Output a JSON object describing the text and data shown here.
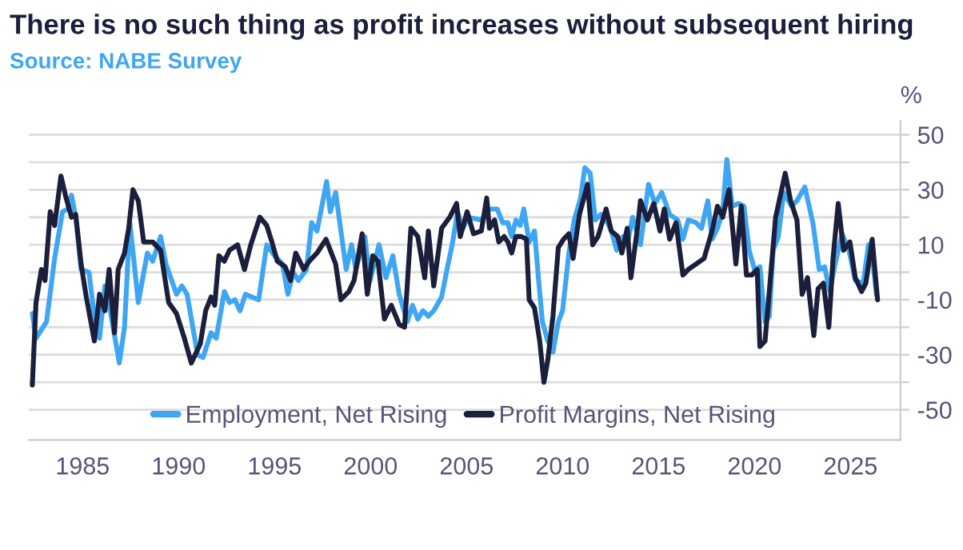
{
  "chart_data": {
    "type": "line",
    "title": "There is no such thing as profit increases without subsequent hiring",
    "subtitle": "Source: NABE Survey",
    "ylabel": "%",
    "series": [
      {
        "name": "Employment, Net Rising",
        "color": "#3ea6f2",
        "x": [
          1982.38,
          1982.57,
          1983.12,
          1983.54,
          1983.95,
          1984.23,
          1984.42,
          1984.64,
          1984.92,
          1985.33,
          1985.61,
          1985.88,
          1986.16,
          1986.44,
          1986.91,
          1987.18,
          1987.46,
          1987.9,
          1988.37,
          1988.65,
          1989.06,
          1989.34,
          1989.89,
          1990.17,
          1990.44,
          1990.99,
          1991.27,
          1991.69,
          1991.96,
          1992.38,
          1992.65,
          1992.93,
          1993.2,
          1993.48,
          1994.17,
          1994.59,
          1995.0,
          1995.41,
          1995.69,
          1995.97,
          1996.24,
          1996.66,
          1996.93,
          1997.21,
          1997.71,
          1997.9,
          1998.18,
          1998.73,
          1999.01,
          1999.23,
          1999.7,
          1999.97,
          2000.44,
          2000.8,
          2001.16,
          2001.49,
          2001.91,
          2002.18,
          2002.46,
          2002.73,
          2003.01,
          2003.29,
          2003.7,
          2003.98,
          2004.25,
          2004.53,
          2004.81,
          2005.08,
          2005.77,
          2006.19,
          2006.6,
          2006.88,
          2007.15,
          2007.35,
          2007.57,
          2007.79,
          2007.98,
          2008.26,
          2008.54,
          2008.73,
          2008.95,
          2009.23,
          2009.5,
          2009.78,
          2010.0,
          2010.33,
          2010.61,
          2010.94,
          2011.16,
          2011.44,
          2011.71,
          2011.99,
          2012.27,
          2012.54,
          2012.82,
          2013.15,
          2013.37,
          2013.65,
          2014.06,
          2014.48,
          2014.81,
          2015.17,
          2015.58,
          2016.0,
          2016.27,
          2016.55,
          2016.96,
          2017.24,
          2017.57,
          2017.79,
          2018.07,
          2018.34,
          2018.56,
          2018.84,
          2019.17,
          2019.45,
          2019.72,
          2020.0,
          2020.28,
          2020.55,
          2020.77,
          2020.97,
          2021.24,
          2021.52,
          2021.93,
          2022.21,
          2022.62,
          2023.04,
          2023.37,
          2023.65,
          2023.92,
          2024.2,
          2024.56,
          2024.92,
          2025.25,
          2025.66,
          2025.94,
          2026.08,
          2026.35
        ],
        "values": [
          -15,
          -24,
          -18,
          5,
          22,
          23,
          28,
          20,
          1,
          0,
          -16,
          -24,
          -5,
          -14,
          -33,
          -20,
          18,
          -11,
          7,
          4,
          13,
          3,
          -8,
          -5,
          -8,
          -30,
          -31,
          -22,
          -24,
          -7,
          -11,
          -10,
          -14,
          -8,
          -10,
          10,
          6,
          3,
          -8,
          0,
          -3,
          1,
          18,
          15,
          33,
          22,
          29,
          1,
          10,
          1,
          13,
          -3,
          10,
          -2,
          6,
          -8,
          -18,
          -12,
          -17,
          -14,
          -16,
          -14,
          -9,
          1,
          10,
          22,
          16,
          20,
          19,
          23,
          23,
          18,
          18,
          13,
          19,
          17,
          23,
          11,
          15,
          -1,
          -18,
          -25,
          -29,
          -18,
          -14,
          7,
          19,
          27,
          38,
          36,
          19,
          21,
          19,
          15,
          8,
          13,
          10,
          20,
          10,
          32,
          25,
          29,
          21,
          19,
          12,
          19,
          18,
          16,
          26,
          12,
          16,
          22,
          41,
          24,
          25,
          24,
          8,
          1,
          2,
          -18,
          -16,
          8,
          13,
          29,
          24,
          26,
          31,
          18,
          1,
          2,
          -7,
          3,
          14,
          8,
          -3,
          -4,
          10,
          9,
          -8
        ]
      },
      {
        "name": "Profit Margins, Net Rising",
        "color": "#1b1f3b",
        "x": [
          1982.38,
          1982.57,
          1982.85,
          1983.04,
          1983.31,
          1983.54,
          1983.87,
          1984.14,
          1984.42,
          1984.64,
          1984.92,
          1985.19,
          1985.61,
          1985.88,
          1986.16,
          1986.38,
          1986.66,
          1986.85,
          1987.18,
          1987.4,
          1987.62,
          1987.9,
          1988.18,
          1988.65,
          1989.06,
          1989.48,
          1989.89,
          1990.3,
          1990.66,
          1991.13,
          1991.41,
          1991.69,
          1991.88,
          1992.1,
          1992.38,
          1992.65,
          1993.07,
          1993.43,
          1993.76,
          1994.23,
          1994.59,
          1994.86,
          1995.14,
          1995.55,
          1995.83,
          1996.1,
          1996.52,
          1996.8,
          1997.21,
          1997.68,
          1998.18,
          1998.45,
          1998.87,
          1999.14,
          1999.56,
          1999.83,
          2000.11,
          2000.39,
          2000.72,
          2001.08,
          2001.49,
          2001.77,
          2002.1,
          2002.46,
          2002.82,
          2003.01,
          2003.29,
          2003.7,
          2004.12,
          2004.48,
          2004.67,
          2005.03,
          2005.36,
          2005.77,
          2006.05,
          2006.19,
          2006.46,
          2006.68,
          2006.96,
          2007.15,
          2007.35,
          2007.57,
          2007.85,
          2008.12,
          2008.26,
          2008.54,
          2008.81,
          2009.03,
          2009.23,
          2009.5,
          2009.78,
          2010.05,
          2010.33,
          2010.55,
          2010.88,
          2011.3,
          2011.57,
          2011.85,
          2012.27,
          2012.54,
          2012.87,
          2013.09,
          2013.37,
          2013.56,
          2013.92,
          2014.06,
          2014.42,
          2014.75,
          2015.08,
          2015.3,
          2015.58,
          2015.91,
          2016.27,
          2016.55,
          2016.96,
          2017.37,
          2017.79,
          2018.07,
          2018.34,
          2018.67,
          2019.03,
          2019.31,
          2019.58,
          2019.86,
          2020.14,
          2020.28,
          2020.55,
          2020.83,
          2021.1,
          2021.6,
          2021.88,
          2022.21,
          2022.48,
          2022.76,
          2023.09,
          2023.31,
          2023.59,
          2023.87,
          2024.09,
          2024.36,
          2024.64,
          2024.97,
          2025.25,
          2025.58,
          2025.8,
          2026.13,
          2026.41
        ],
        "values": [
          -41,
          -11,
          1,
          -3,
          22,
          17,
          35,
          27,
          20,
          21,
          3,
          -9,
          -25,
          -8,
          -14,
          1,
          -22,
          1,
          7,
          16,
          30,
          26,
          11,
          11,
          8,
          -11,
          -15,
          -24,
          -33,
          -26,
          -14,
          -9,
          -12,
          6,
          4,
          8,
          10,
          1,
          10,
          20,
          17,
          11,
          4,
          2,
          -3,
          7,
          1,
          4,
          7,
          12,
          3,
          -10,
          -7,
          -3,
          14,
          -8,
          6,
          4,
          -17,
          -12,
          -19,
          -20,
          16,
          13,
          -2,
          15,
          -5,
          16,
          20,
          25,
          13,
          22,
          14,
          15,
          27,
          16,
          19,
          11,
          13,
          11,
          7,
          13,
          13,
          12,
          -10,
          -13,
          -25,
          -40,
          -32,
          -16,
          9,
          12,
          14,
          5,
          21,
          32,
          10,
          13,
          23,
          15,
          13,
          7,
          16,
          -2,
          17,
          26,
          19,
          25,
          15,
          23,
          12,
          18,
          -1,
          1,
          3,
          5,
          15,
          24,
          20,
          30,
          3,
          24,
          -1,
          -1,
          1,
          -27,
          -25,
          -2,
          20,
          36,
          26,
          19,
          -8,
          -2,
          -23,
          -6,
          -4,
          -20,
          5,
          25,
          8,
          11,
          -2,
          -7,
          -4,
          12,
          -10
        ]
      }
    ],
    "xlim": [
      1982.2,
      2027.6
    ],
    "xticks": [
      1985,
      1990,
      1995,
      2000,
      2005,
      2010,
      2015,
      2020,
      2025
    ],
    "ylim": [
      -61,
      55
    ],
    "yticks": [
      50,
      {
        "value": 40,
        "label": null
      },
      30,
      {
        "value": 20,
        "label": null
      },
      10,
      {
        "value": 0,
        "label": null
      },
      -10,
      {
        "value": -20,
        "label": null
      },
      -30,
      {
        "value": -40,
        "label": null
      },
      -50
    ],
    "grid": "y",
    "legend": "bottom",
    "line_style": "solid"
  }
}
